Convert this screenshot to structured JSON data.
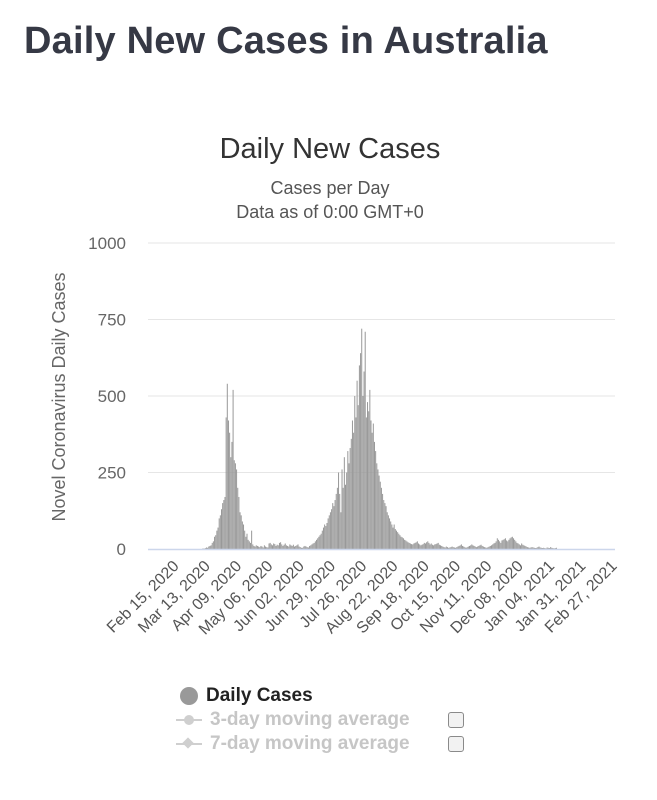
{
  "page": {
    "title": "Daily New Cases in Australia"
  },
  "chart_data": {
    "type": "bar",
    "title": "Daily New Cases",
    "subtitle_lines": [
      "Cases per Day",
      "Data as of 0:00 GMT+0"
    ],
    "ylabel": "Novel Coronavirus Daily Cases",
    "xlabel": "",
    "ylim": [
      0,
      1000
    ],
    "yticks": [
      0,
      250,
      500,
      750,
      1000
    ],
    "grid": true,
    "start_date": "2020-01-22",
    "end_date": "2021-02-28",
    "xtick_labels": [
      "Feb 15, 2020",
      "Mar 13, 2020",
      "Apr 09, 2020",
      "May 06, 2020",
      "Jun 02, 2020",
      "Jun 29, 2020",
      "Jul 26, 2020",
      "Aug 22, 2020",
      "Sep 18, 2020",
      "Oct 15, 2020",
      "Nov 11, 2020",
      "Dec 08, 2020",
      "Jan 04, 2021",
      "Jan 31, 2021",
      "Feb 27, 2021"
    ],
    "series": [
      {
        "name": "Daily Cases",
        "color": "#999999",
        "values": [
          0,
          0,
          0,
          0,
          0,
          0,
          0,
          0,
          0,
          0,
          0,
          0,
          0,
          0,
          0,
          0,
          0,
          0,
          0,
          0,
          0,
          0,
          0,
          0,
          0,
          0,
          0,
          0,
          0,
          0,
          0,
          0,
          0,
          0,
          0,
          0,
          0,
          0,
          0,
          0,
          0,
          0,
          0,
          0,
          0,
          0,
          0,
          2,
          1,
          3,
          5,
          4,
          8,
          10,
          12,
          20,
          25,
          40,
          45,
          60,
          70,
          100,
          110,
          130,
          150,
          160,
          170,
          430,
          540,
          420,
          380,
          300,
          350,
          520,
          290,
          280,
          260,
          200,
          170,
          120,
          110,
          90,
          80,
          60,
          40,
          50,
          30,
          25,
          20,
          60,
          15,
          10,
          8,
          12,
          10,
          8,
          6,
          10,
          8,
          5,
          12,
          8,
          6,
          5,
          18,
          20,
          15,
          12,
          18,
          16,
          10,
          14,
          12,
          20,
          22,
          15,
          10,
          14,
          18,
          12,
          10,
          8,
          15,
          12,
          10,
          14,
          8,
          10,
          12,
          15,
          8,
          6,
          4,
          4,
          8,
          10,
          8,
          6,
          5,
          10,
          12,
          15,
          18,
          20,
          25,
          30,
          35,
          40,
          45,
          50,
          60,
          70,
          80,
          75,
          85,
          100,
          110,
          120,
          130,
          150,
          140,
          160,
          180,
          200,
          250,
          180,
          120,
          260,
          200,
          300,
          210,
          250,
          320,
          280,
          330,
          360,
          420,
          380,
          500,
          430,
          550,
          470,
          600,
          640,
          720,
          500,
          580,
          710,
          430,
          480,
          450,
          520,
          420,
          380,
          410,
          350,
          320,
          280,
          260,
          240,
          220,
          200,
          180,
          160,
          150,
          140,
          120,
          110,
          100,
          90,
          80,
          70,
          80,
          65,
          60,
          55,
          50,
          45,
          40,
          38,
          35,
          30,
          28,
          25,
          22,
          20,
          18,
          16,
          15,
          18,
          20,
          22,
          25,
          18,
          15,
          12,
          14,
          16,
          20,
          18,
          22,
          25,
          20,
          15,
          18,
          14,
          12,
          15,
          16,
          18,
          20,
          14,
          12,
          10,
          8,
          6,
          5,
          8,
          6,
          4,
          5,
          6,
          8,
          6,
          5,
          4,
          6,
          8,
          10,
          12,
          15,
          10,
          8,
          6,
          4,
          6,
          8,
          10,
          12,
          15,
          12,
          10,
          8,
          6,
          8,
          10,
          12,
          14,
          10,
          8,
          6,
          5,
          4,
          6,
          8,
          10,
          12,
          15,
          18,
          20,
          25,
          35,
          30,
          25,
          20,
          28,
          30,
          32,
          35,
          28,
          25,
          30,
          35,
          38,
          40,
          35,
          30,
          25,
          20,
          18,
          15,
          12,
          18,
          14,
          12,
          10,
          8,
          6,
          5,
          4,
          5,
          6,
          5,
          4,
          3,
          4,
          6,
          8,
          5,
          4,
          3,
          4,
          3,
          2,
          5,
          4,
          3,
          6,
          4,
          3,
          2,
          3,
          4
        ]
      },
      {
        "name": "3-day moving average",
        "visible": false
      },
      {
        "name": "7-day moving average",
        "visible": false
      }
    ]
  }
}
